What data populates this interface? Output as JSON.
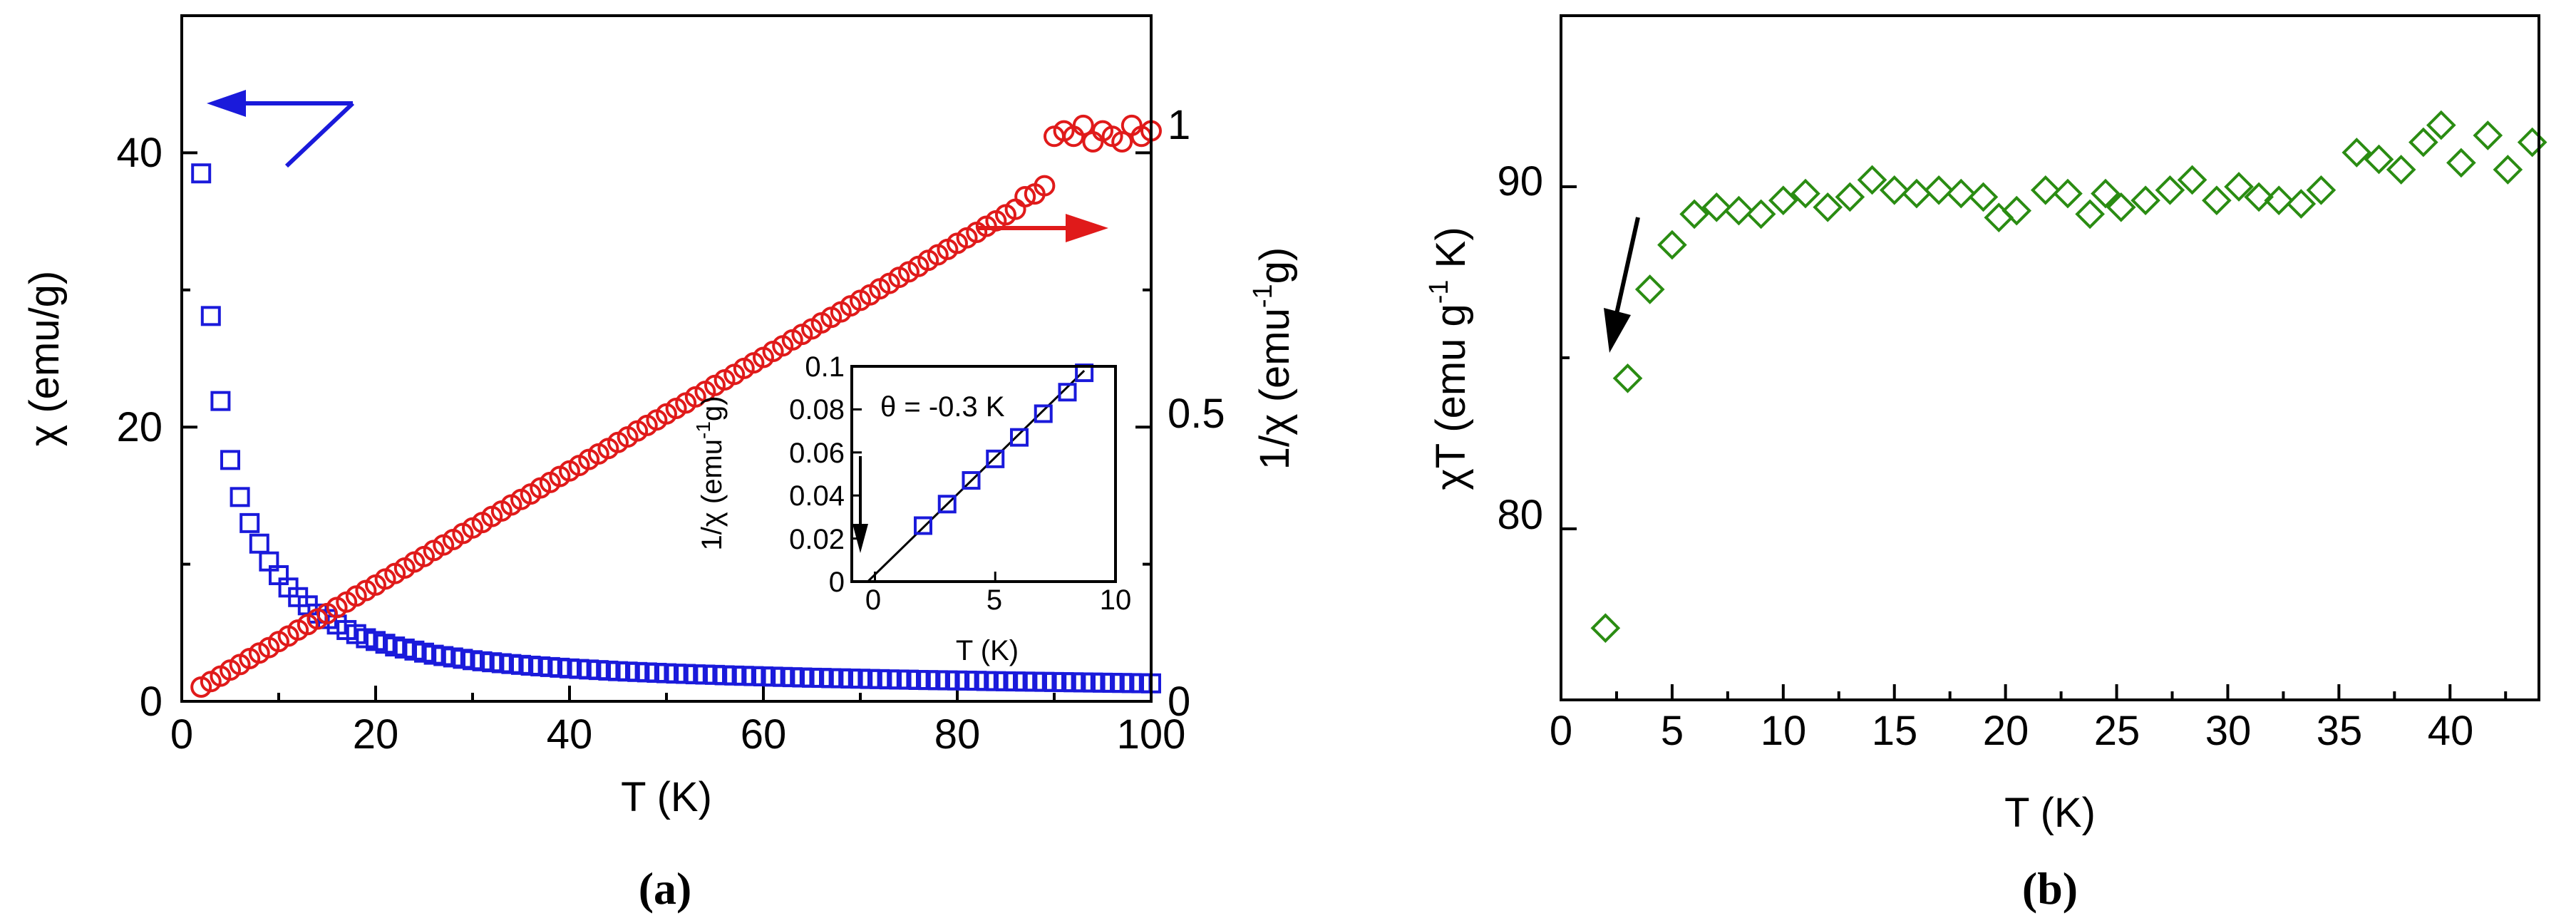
{
  "chart_data": [
    {
      "panel": "a",
      "type": "scatter",
      "caption": "(a)",
      "xlabel": "T (K)",
      "ylabel_left": "χ (emu/g)",
      "ylabel_right": "1/χ (emu",
      "ylabel_right_sup": "-1",
      "ylabel_right_tail": "g)",
      "xlim": [
        0,
        100
      ],
      "ylim_left": [
        0,
        50
      ],
      "ylim_right": [
        0,
        1.25
      ],
      "xticks": [
        "0",
        "20",
        "40",
        "60",
        "80",
        "100"
      ],
      "yticks_left": [
        "0",
        "20",
        "40"
      ],
      "yticks_right": [
        "0",
        "0.5",
        "1"
      ],
      "series": [
        {
          "name": "χ",
          "axis": "left",
          "marker": "square",
          "color": "#1a1adb",
          "x": [
            2,
            3,
            4,
            5,
            6,
            7,
            8,
            9,
            10,
            11,
            12,
            13,
            14,
            15,
            16,
            17,
            18,
            19,
            20,
            21,
            22,
            23,
            24,
            25,
            26,
            27,
            28,
            29,
            30,
            31,
            32,
            33,
            34,
            35,
            36,
            37,
            38,
            39,
            40,
            41,
            42,
            43,
            44,
            45,
            46,
            47,
            48,
            49,
            50,
            51,
            52,
            53,
            54,
            55,
            56,
            57,
            58,
            59,
            60,
            61,
            62,
            63,
            64,
            65,
            66,
            67,
            68,
            69,
            70,
            71,
            72,
            73,
            74,
            75,
            76,
            77,
            78,
            79,
            80,
            81,
            82,
            83,
            84,
            85,
            86,
            87,
            88,
            89,
            90,
            91,
            92,
            93,
            94,
            95,
            96,
            97,
            98,
            99,
            100
          ],
          "y": [
            38.5,
            28.1,
            21.9,
            17.6,
            14.9,
            13.0,
            11.5,
            10.2,
            9.2,
            8.3,
            7.6,
            7.0,
            6.4,
            6.0,
            5.6,
            5.2,
            4.9,
            4.6,
            4.4,
            4.2,
            4.0,
            3.85,
            3.7,
            3.55,
            3.4,
            3.3,
            3.2,
            3.1,
            3.0,
            2.92,
            2.85,
            2.78,
            2.72,
            2.66,
            2.6,
            2.55,
            2.5,
            2.45,
            2.4,
            2.36,
            2.32,
            2.28,
            2.24,
            2.2,
            2.17,
            2.14,
            2.11,
            2.08,
            2.05,
            2.02,
            2.0,
            1.97,
            1.95,
            1.93,
            1.9,
            1.88,
            1.86,
            1.84,
            1.82,
            1.8,
            1.78,
            1.76,
            1.74,
            1.72,
            1.71,
            1.69,
            1.68,
            1.66,
            1.65,
            1.63,
            1.62,
            1.6,
            1.59,
            1.58,
            1.56,
            1.55,
            1.54,
            1.53,
            1.52,
            1.51,
            1.5,
            1.48,
            1.47,
            1.46,
            1.45,
            1.44,
            1.43,
            1.42,
            1.41,
            1.4,
            1.39,
            1.38,
            1.37,
            1.36,
            1.35,
            1.34,
            1.33,
            1.32,
            1.31
          ]
        },
        {
          "name": "1/χ",
          "axis": "right",
          "marker": "circle",
          "color": "#e01a1a",
          "x": [
            2,
            3,
            4,
            5,
            6,
            7,
            8,
            9,
            10,
            11,
            12,
            13,
            14,
            15,
            16,
            17,
            18,
            19,
            20,
            21,
            22,
            23,
            24,
            25,
            26,
            27,
            28,
            29,
            30,
            31,
            32,
            33,
            34,
            35,
            36,
            37,
            38,
            39,
            40,
            41,
            42,
            43,
            44,
            45,
            46,
            47,
            48,
            49,
            50,
            51,
            52,
            53,
            54,
            55,
            56,
            57,
            58,
            59,
            60,
            61,
            62,
            63,
            64,
            65,
            66,
            67,
            68,
            69,
            70,
            71,
            72,
            73,
            74,
            75,
            76,
            77,
            78,
            79,
            80,
            81,
            82,
            83,
            84,
            85,
            86,
            87,
            88,
            89,
            90,
            91,
            92,
            93,
            94,
            95,
            96,
            97,
            98,
            99,
            100
          ],
          "y": [
            0.026,
            0.036,
            0.046,
            0.057,
            0.067,
            0.078,
            0.088,
            0.098,
            0.109,
            0.119,
            0.13,
            0.14,
            0.15,
            0.16,
            0.171,
            0.181,
            0.192,
            0.202,
            0.212,
            0.223,
            0.233,
            0.243,
            0.254,
            0.264,
            0.275,
            0.285,
            0.295,
            0.306,
            0.316,
            0.326,
            0.337,
            0.347,
            0.358,
            0.368,
            0.378,
            0.389,
            0.399,
            0.41,
            0.42,
            0.43,
            0.441,
            0.451,
            0.461,
            0.472,
            0.482,
            0.493,
            0.503,
            0.513,
            0.524,
            0.534,
            0.544,
            0.555,
            0.565,
            0.576,
            0.586,
            0.596,
            0.607,
            0.617,
            0.627,
            0.638,
            0.648,
            0.659,
            0.669,
            0.679,
            0.69,
            0.7,
            0.71,
            0.721,
            0.731,
            0.741,
            0.752,
            0.762,
            0.773,
            0.783,
            0.793,
            0.804,
            0.814,
            0.824,
            0.835,
            0.845,
            0.855,
            0.866,
            0.876,
            0.887,
            0.897,
            0.92,
            0.925,
            0.94,
            1.03,
            1.04,
            1.03,
            1.05,
            1.02,
            1.04,
            1.03,
            1.02,
            1.05,
            1.03,
            1.04
          ]
        }
      ],
      "arrows": [
        {
          "label": "points-to-left-axis",
          "color": "#1a1adb"
        },
        {
          "label": "points-to-right-axis",
          "color": "#e01a1a"
        }
      ],
      "inset": {
        "type": "scatter",
        "xlabel": "T (K)",
        "ylabel": "1/χ (emu",
        "ylabel_sup": "-1",
        "ylabel_tail": "g)",
        "xlim": [
          -2,
          10
        ],
        "ylim": [
          0,
          0.1
        ],
        "xticks": [
          "0",
          "5",
          "10"
        ],
        "yticks": [
          "0",
          "0.02",
          "0.04",
          "0.06",
          "0.08",
          "0.1"
        ],
        "annotation": "θ = -0.3 K",
        "fit_line": {
          "x": [
            -0.3,
            8.7
          ],
          "y": [
            0,
            0.098
          ]
        },
        "x": [
          2,
          3,
          4,
          5,
          6,
          7,
          8,
          8.7
        ],
        "y": [
          0.026,
          0.036,
          0.047,
          0.057,
          0.067,
          0.078,
          0.088,
          0.097
        ],
        "color": "#1a1adb"
      }
    },
    {
      "panel": "b",
      "type": "scatter",
      "caption": "(b)",
      "xlabel": "T (K)",
      "ylabel": "χT (emu g",
      "ylabel_sup": "-1",
      "ylabel_tail": " K)",
      "xlim": [
        0,
        44
      ],
      "ylim": [
        75,
        95
      ],
      "xticks": [
        "0",
        "5",
        "10",
        "15",
        "20",
        "25",
        "30",
        "35",
        "40"
      ],
      "yticks": [
        "80",
        "90"
      ],
      "marker": "diamond",
      "color": "#2a8c12",
      "x": [
        2,
        3,
        4,
        5,
        6,
        7,
        8,
        9,
        10,
        11,
        12,
        13,
        14,
        15,
        16,
        17,
        18,
        19,
        19.7,
        20.5,
        21.8,
        22.8,
        23.8,
        24.5,
        25.2,
        26.3,
        27.4,
        28.4,
        29.5,
        30.5,
        31.4,
        32.3,
        33.3,
        34.2,
        35.8,
        36.8,
        37.8,
        38.8,
        39.6,
        40.5,
        41.7,
        42.6,
        43.7
      ],
      "y": [
        77.1,
        84.4,
        87.0,
        88.3,
        89.2,
        89.4,
        89.3,
        89.2,
        89.6,
        89.8,
        89.4,
        89.7,
        90.2,
        89.9,
        89.8,
        89.9,
        89.8,
        89.7,
        89.1,
        89.3,
        89.9,
        89.8,
        89.2,
        89.8,
        89.4,
        89.6,
        89.9,
        90.2,
        89.6,
        90.0,
        89.7,
        89.6,
        89.5,
        89.9,
        91.0,
        90.8,
        90.5,
        91.3,
        91.8,
        90.7,
        91.5,
        90.5,
        91.3
      ],
      "arrow": {
        "label": "points-down-left",
        "color": "#000000"
      }
    }
  ]
}
